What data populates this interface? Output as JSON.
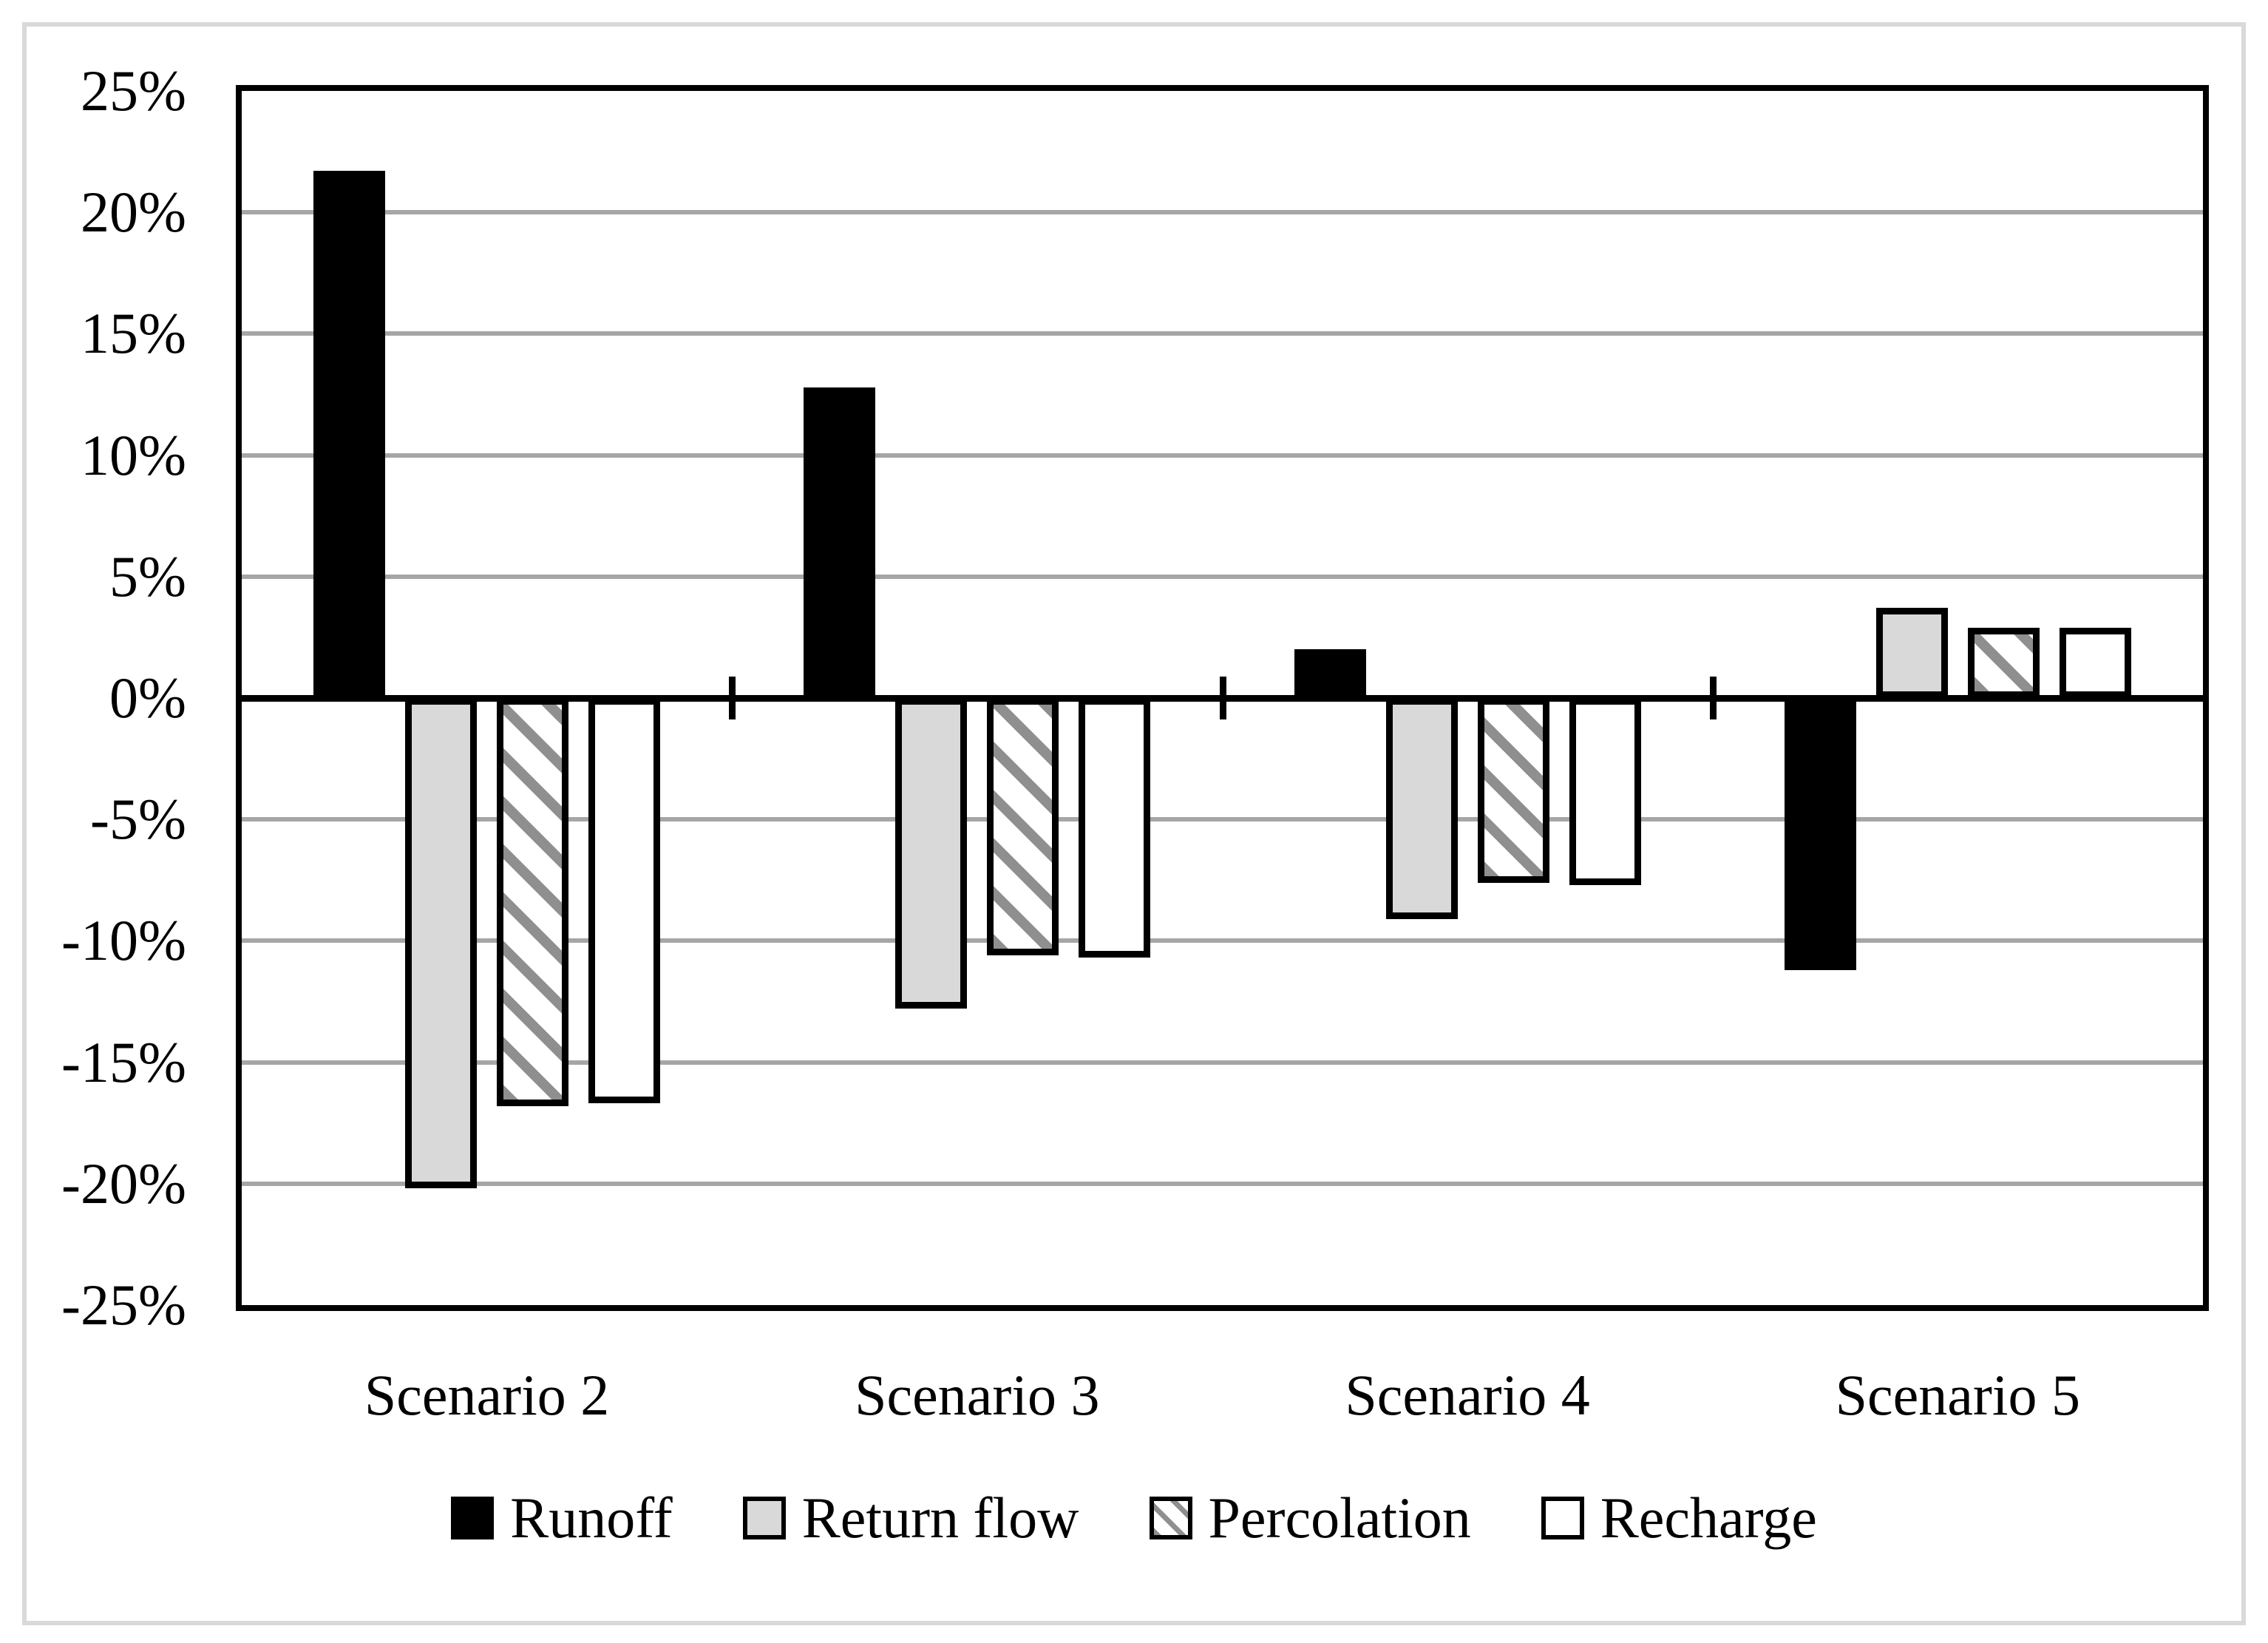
{
  "chart_data": {
    "type": "bar",
    "title": "",
    "categories": [
      "Scenario 2",
      "Scenario 3",
      "Scenario 4",
      "Scenario 5"
    ],
    "series": [
      {
        "name": "Runoff",
        "style": "black",
        "values": [
          21.7,
          12.8,
          2.0,
          -11.2
        ]
      },
      {
        "name": "Return flow",
        "style": "gray",
        "values": [
          -20.2,
          -12.8,
          -9.1,
          3.7
        ]
      },
      {
        "name": "Percolation",
        "style": "hatch",
        "values": [
          -16.8,
          -10.6,
          -7.6,
          2.9
        ]
      },
      {
        "name": "Recharge",
        "style": "white",
        "values": [
          -16.7,
          -10.7,
          -7.7,
          2.9
        ]
      }
    ],
    "ylim": [
      -25,
      25
    ],
    "ytick_step": 5,
    "ytick_labels": [
      "25%",
      "20%",
      "15%",
      "10%",
      "5%",
      "0%",
      "-5%",
      "-10%",
      "-15%",
      "-20%",
      "-25%"
    ],
    "xlabel": "",
    "ylabel": "",
    "grid": true,
    "legend_position": "bottom"
  },
  "colors": {
    "black": "#000000",
    "bar_gray": "#d9d9d9",
    "hatch_stripe": "#8f8f8f",
    "gridline": "#a6a6a6",
    "frame_border": "#d9d9d9",
    "background": "#ffffff"
  }
}
